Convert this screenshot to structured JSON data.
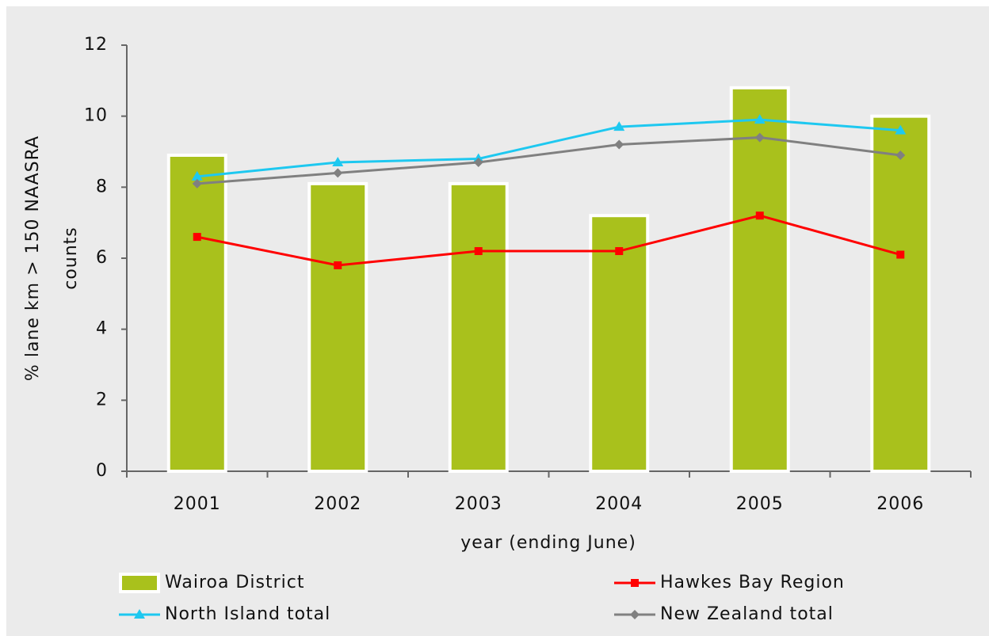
{
  "chart_data": {
    "type": "bar",
    "x_label": "year (ending June)",
    "y_label": [
      "% lane km > 150 NAASRA",
      "counts"
    ],
    "categories": [
      "2001",
      "2002",
      "2003",
      "2004",
      "2005",
      "2006"
    ],
    "series": [
      {
        "name": "Wairoa District",
        "type": "bar",
        "color": "#a9c11c",
        "values": [
          8.9,
          8.1,
          8.1,
          7.2,
          10.8,
          10.0
        ]
      },
      {
        "name": "Hawkes Bay Region",
        "type": "line",
        "marker": "square",
        "color": "#ff0000",
        "values": [
          6.6,
          5.8,
          6.2,
          6.2,
          7.2,
          6.1
        ]
      },
      {
        "name": "North Island total",
        "type": "line",
        "marker": "triangle",
        "color": "#1ec8f0",
        "values": [
          8.3,
          8.7,
          8.8,
          9.7,
          9.9,
          9.6
        ]
      },
      {
        "name": "New Zealand total",
        "type": "line",
        "marker": "diamond",
        "color": "#808080",
        "values": [
          8.1,
          8.4,
          8.7,
          9.2,
          9.4,
          8.9
        ]
      }
    ],
    "ylim": [
      0,
      12
    ],
    "yticks": [
      0,
      2,
      4,
      6,
      8,
      10,
      12
    ]
  }
}
